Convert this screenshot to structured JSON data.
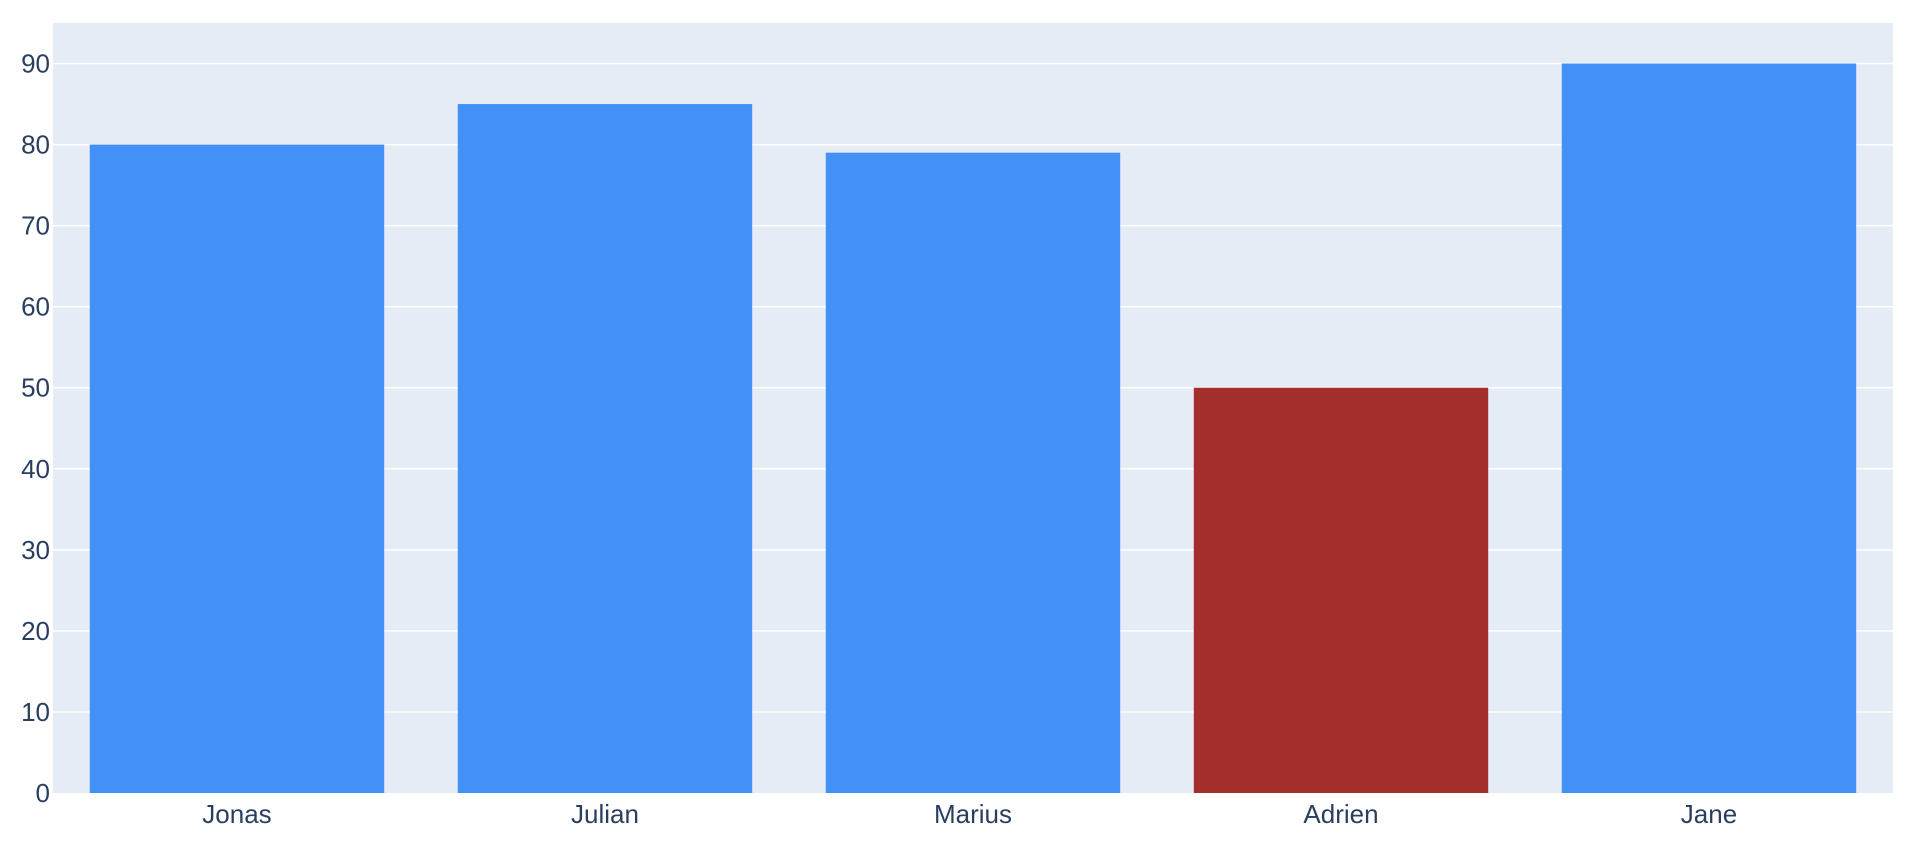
{
  "chart_data": {
    "type": "bar",
    "title": "",
    "xlabel": "",
    "ylabel": "",
    "categories": [
      "Jonas",
      "Julian",
      "Marius",
      "Adrien",
      "Jane"
    ],
    "values": [
      80,
      85,
      79,
      50,
      90
    ],
    "bar_colors": [
      "#4390f6",
      "#4390f6",
      "#4390f6",
      "#a42e2c",
      "#4390f6"
    ],
    "ylim": [
      0,
      95
    ],
    "yticks": [
      0,
      10,
      20,
      30,
      40,
      50,
      60,
      70,
      80,
      90
    ],
    "grid": true,
    "legend": "none",
    "colors": {
      "plot_background": "#e5ecf6",
      "gridline": "#ffffff",
      "tick_text": "#2a3f5f"
    }
  }
}
